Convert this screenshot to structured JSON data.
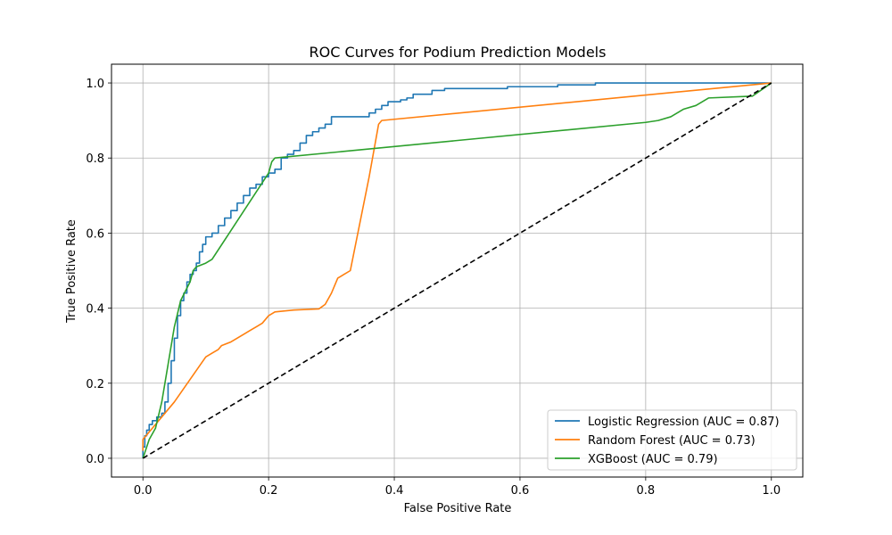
{
  "chart_data": {
    "type": "line",
    "title": "ROC Curves for Podium Prediction Models",
    "xlabel": "False Positive Rate",
    "ylabel": "True Positive Rate",
    "xlim": [
      -0.05,
      1.05
    ],
    "ylim": [
      -0.05,
      1.05
    ],
    "xticks": [
      "0.0",
      "0.2",
      "0.4",
      "0.6",
      "0.8",
      "1.0"
    ],
    "yticks": [
      "0.0",
      "0.2",
      "0.4",
      "0.6",
      "0.8",
      "1.0"
    ],
    "grid": true,
    "legend_position": "lower right",
    "series": [
      {
        "name": "Logistic Regression (AUC = 0.87)",
        "color": "#1f77b4",
        "step": true,
        "points": [
          [
            0,
            0
          ],
          [
            0,
            0.03
          ],
          [
            0.003,
            0.06
          ],
          [
            0.006,
            0.075
          ],
          [
            0.01,
            0.09
          ],
          [
            0.015,
            0.1
          ],
          [
            0.022,
            0.11
          ],
          [
            0.03,
            0.12
          ],
          [
            0.035,
            0.15
          ],
          [
            0.04,
            0.2
          ],
          [
            0.045,
            0.26
          ],
          [
            0.05,
            0.32
          ],
          [
            0.055,
            0.38
          ],
          [
            0.06,
            0.42
          ],
          [
            0.065,
            0.44
          ],
          [
            0.07,
            0.47
          ],
          [
            0.075,
            0.49
          ],
          [
            0.08,
            0.5
          ],
          [
            0.085,
            0.52
          ],
          [
            0.09,
            0.55
          ],
          [
            0.095,
            0.57
          ],
          [
            0.1,
            0.59
          ],
          [
            0.11,
            0.6
          ],
          [
            0.12,
            0.62
          ],
          [
            0.13,
            0.64
          ],
          [
            0.14,
            0.66
          ],
          [
            0.15,
            0.68
          ],
          [
            0.16,
            0.7
          ],
          [
            0.17,
            0.72
          ],
          [
            0.18,
            0.73
          ],
          [
            0.19,
            0.75
          ],
          [
            0.2,
            0.76
          ],
          [
            0.21,
            0.77
          ],
          [
            0.22,
            0.8
          ],
          [
            0.23,
            0.81
          ],
          [
            0.24,
            0.82
          ],
          [
            0.25,
            0.84
          ],
          [
            0.26,
            0.86
          ],
          [
            0.27,
            0.87
          ],
          [
            0.28,
            0.88
          ],
          [
            0.29,
            0.89
          ],
          [
            0.3,
            0.91
          ],
          [
            0.33,
            0.91
          ],
          [
            0.36,
            0.92
          ],
          [
            0.37,
            0.93
          ],
          [
            0.38,
            0.94
          ],
          [
            0.39,
            0.95
          ],
          [
            0.41,
            0.955
          ],
          [
            0.42,
            0.96
          ],
          [
            0.43,
            0.97
          ],
          [
            0.46,
            0.98
          ],
          [
            0.48,
            0.985
          ],
          [
            0.52,
            0.985
          ],
          [
            0.58,
            0.99
          ],
          [
            0.66,
            0.995
          ],
          [
            0.72,
            1.0
          ],
          [
            1.0,
            1.0
          ]
        ]
      },
      {
        "name": "Random Forest (AUC = 0.73)",
        "color": "#ff7f0e",
        "step": false,
        "points": [
          [
            0,
            0.02
          ],
          [
            0,
            0.05
          ],
          [
            0.05,
            0.15
          ],
          [
            0.1,
            0.27
          ],
          [
            0.11,
            0.28
          ],
          [
            0.12,
            0.29
          ],
          [
            0.125,
            0.3
          ],
          [
            0.14,
            0.31
          ],
          [
            0.16,
            0.33
          ],
          [
            0.17,
            0.34
          ],
          [
            0.18,
            0.35
          ],
          [
            0.19,
            0.36
          ],
          [
            0.2,
            0.38
          ],
          [
            0.21,
            0.39
          ],
          [
            0.24,
            0.395
          ],
          [
            0.28,
            0.398
          ],
          [
            0.29,
            0.41
          ],
          [
            0.3,
            0.44
          ],
          [
            0.31,
            0.48
          ],
          [
            0.32,
            0.49
          ],
          [
            0.33,
            0.5
          ],
          [
            0.36,
            0.75
          ],
          [
            0.375,
            0.89
          ],
          [
            0.38,
            0.9
          ],
          [
            1.0,
            1.0
          ]
        ]
      },
      {
        "name": "XGBoost (AUC = 0.79)",
        "color": "#2ca02c",
        "step": false,
        "points": [
          [
            0,
            0
          ],
          [
            0.01,
            0.05
          ],
          [
            0.02,
            0.08
          ],
          [
            0.03,
            0.15
          ],
          [
            0.04,
            0.25
          ],
          [
            0.05,
            0.35
          ],
          [
            0.06,
            0.42
          ],
          [
            0.075,
            0.47
          ],
          [
            0.08,
            0.5
          ],
          [
            0.085,
            0.51
          ],
          [
            0.1,
            0.52
          ],
          [
            0.11,
            0.53
          ],
          [
            0.2,
            0.76
          ],
          [
            0.205,
            0.79
          ],
          [
            0.21,
            0.8
          ],
          [
            0.8,
            0.895
          ],
          [
            0.82,
            0.9
          ],
          [
            0.84,
            0.91
          ],
          [
            0.86,
            0.93
          ],
          [
            0.88,
            0.94
          ],
          [
            0.9,
            0.96
          ],
          [
            0.97,
            0.965
          ],
          [
            1.0,
            1.0
          ]
        ]
      },
      {
        "name": "",
        "color": "#000000",
        "dashed": true,
        "points": [
          [
            0,
            0
          ],
          [
            1,
            1
          ]
        ]
      }
    ]
  }
}
